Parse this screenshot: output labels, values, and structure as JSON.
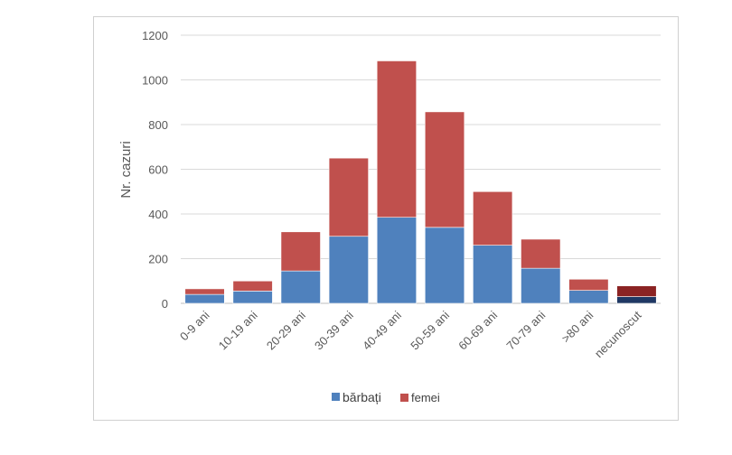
{
  "chart_data": {
    "type": "bar",
    "stacked": true,
    "title": "",
    "xlabel": "",
    "ylabel": "Nr. cazuri",
    "ylim": [
      0,
      1200
    ],
    "yticks": [
      0,
      200,
      400,
      600,
      800,
      1000,
      1200
    ],
    "grid": true,
    "legend_position": "bottom",
    "categories": [
      "0-9 ani",
      "10-19 ani",
      "20-29 ani",
      "30-39 ani",
      "40-49 ani",
      "50-59 ani",
      "60-69 ani",
      "70-79 ani",
      ">80 ani",
      "necunoscut"
    ],
    "series": [
      {
        "name": "bărbați",
        "color": "#4f81bd",
        "values": [
          40,
          55,
          145,
          300,
          385,
          340,
          260,
          157,
          58,
          30
        ],
        "highlight_colors": {
          "9": "#1f3864"
        }
      },
      {
        "name": "femei",
        "color": "#c0504d",
        "values": [
          25,
          45,
          175,
          350,
          700,
          517,
          240,
          130,
          50,
          48
        ],
        "highlight_colors": {
          "9": "#8b2323"
        }
      }
    ]
  }
}
